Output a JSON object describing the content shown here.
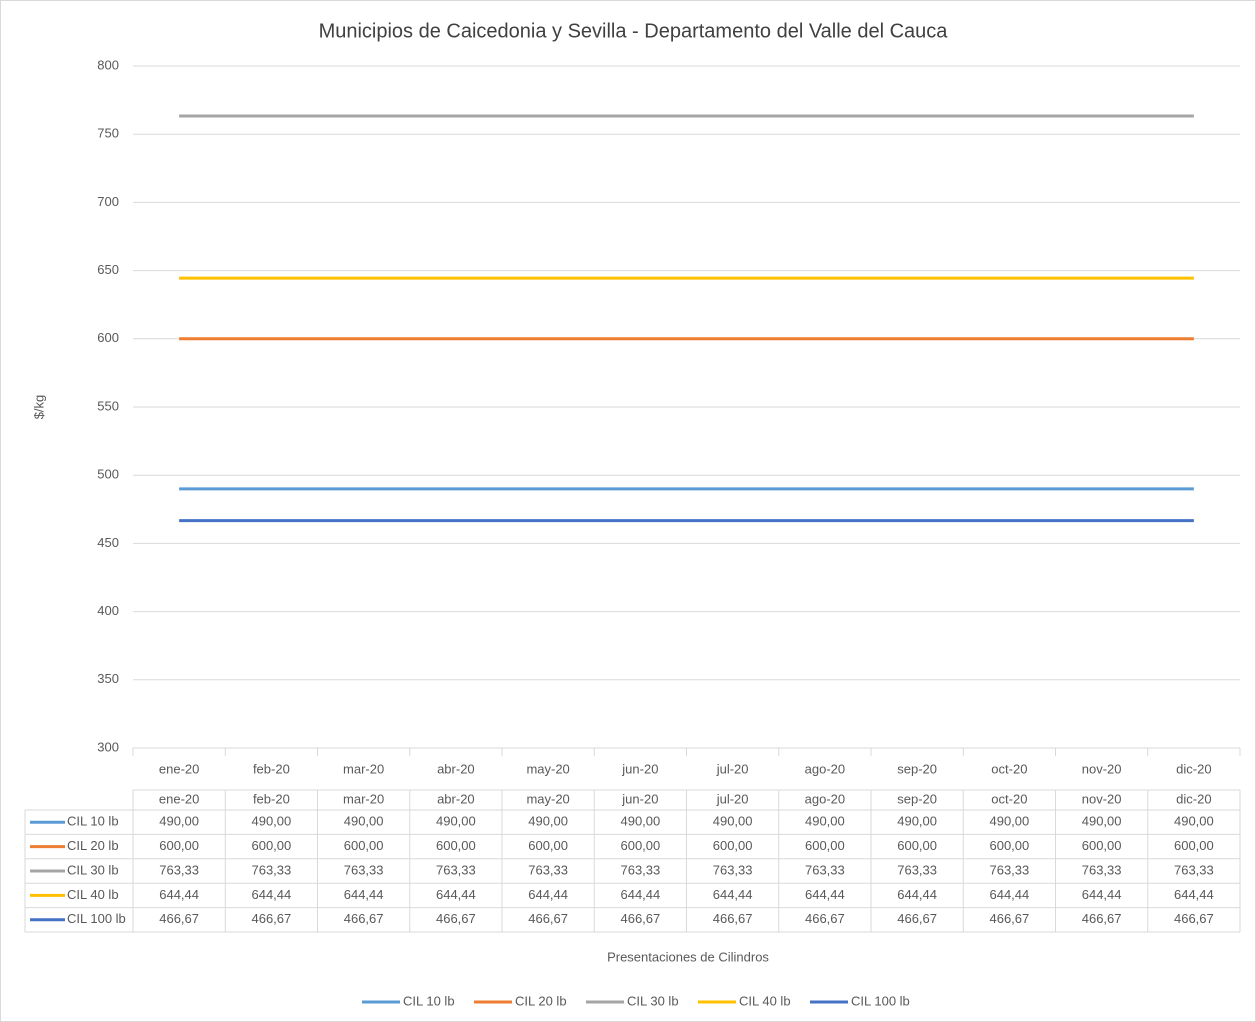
{
  "chart_data": {
    "type": "line",
    "title": "Municipios de Caicedonia y Sevilla - Departamento del Valle del Cauca",
    "y_label": "$/kg",
    "x_label": "Presentaciones de Cilindros",
    "categories": [
      "ene-20",
      "feb-20",
      "mar-20",
      "abr-20",
      "may-20",
      "jun-20",
      "jul-20",
      "ago-20",
      "sep-20",
      "oct-20",
      "nov-20",
      "dic-20"
    ],
    "series": [
      {
        "name": "CIL 10 lb",
        "color": "#5b9bd5",
        "values": [
          490,
          490,
          490,
          490,
          490,
          490,
          490,
          490,
          490,
          490,
          490,
          490
        ],
        "value_labels": [
          "490,00",
          "490,00",
          "490,00",
          "490,00",
          "490,00",
          "490,00",
          "490,00",
          "490,00",
          "490,00",
          "490,00",
          "490,00",
          "490,00"
        ]
      },
      {
        "name": "CIL 20 lb",
        "color": "#ed7d31",
        "values": [
          600,
          600,
          600,
          600,
          600,
          600,
          600,
          600,
          600,
          600,
          600,
          600
        ],
        "value_labels": [
          "600,00",
          "600,00",
          "600,00",
          "600,00",
          "600,00",
          "600,00",
          "600,00",
          "600,00",
          "600,00",
          "600,00",
          "600,00",
          "600,00"
        ]
      },
      {
        "name": "CIL 30 lb",
        "color": "#a5a5a5",
        "values": [
          763.33,
          763.33,
          763.33,
          763.33,
          763.33,
          763.33,
          763.33,
          763.33,
          763.33,
          763.33,
          763.33,
          763.33
        ],
        "value_labels": [
          "763,33",
          "763,33",
          "763,33",
          "763,33",
          "763,33",
          "763,33",
          "763,33",
          "763,33",
          "763,33",
          "763,33",
          "763,33",
          "763,33"
        ]
      },
      {
        "name": "CIL 40 lb",
        "color": "#ffc000",
        "values": [
          644.44,
          644.44,
          644.44,
          644.44,
          644.44,
          644.44,
          644.44,
          644.44,
          644.44,
          644.44,
          644.44,
          644.44
        ],
        "value_labels": [
          "644,44",
          "644,44",
          "644,44",
          "644,44",
          "644,44",
          "644,44",
          "644,44",
          "644,44",
          "644,44",
          "644,44",
          "644,44",
          "644,44"
        ]
      },
      {
        "name": "CIL 100 lb",
        "color": "#4472c4",
        "values": [
          466.67,
          466.67,
          466.67,
          466.67,
          466.67,
          466.67,
          466.67,
          466.67,
          466.67,
          466.67,
          466.67,
          466.67
        ],
        "value_labels": [
          "466,67",
          "466,67",
          "466,67",
          "466,67",
          "466,67",
          "466,67",
          "466,67",
          "466,67",
          "466,67",
          "466,67",
          "466,67",
          "466,67"
        ]
      }
    ],
    "ylim": [
      300,
      800
    ],
    "yticks": [
      300,
      350,
      400,
      450,
      500,
      550,
      600,
      650,
      700,
      750,
      800
    ],
    "grid": true,
    "legend": "bottom"
  }
}
